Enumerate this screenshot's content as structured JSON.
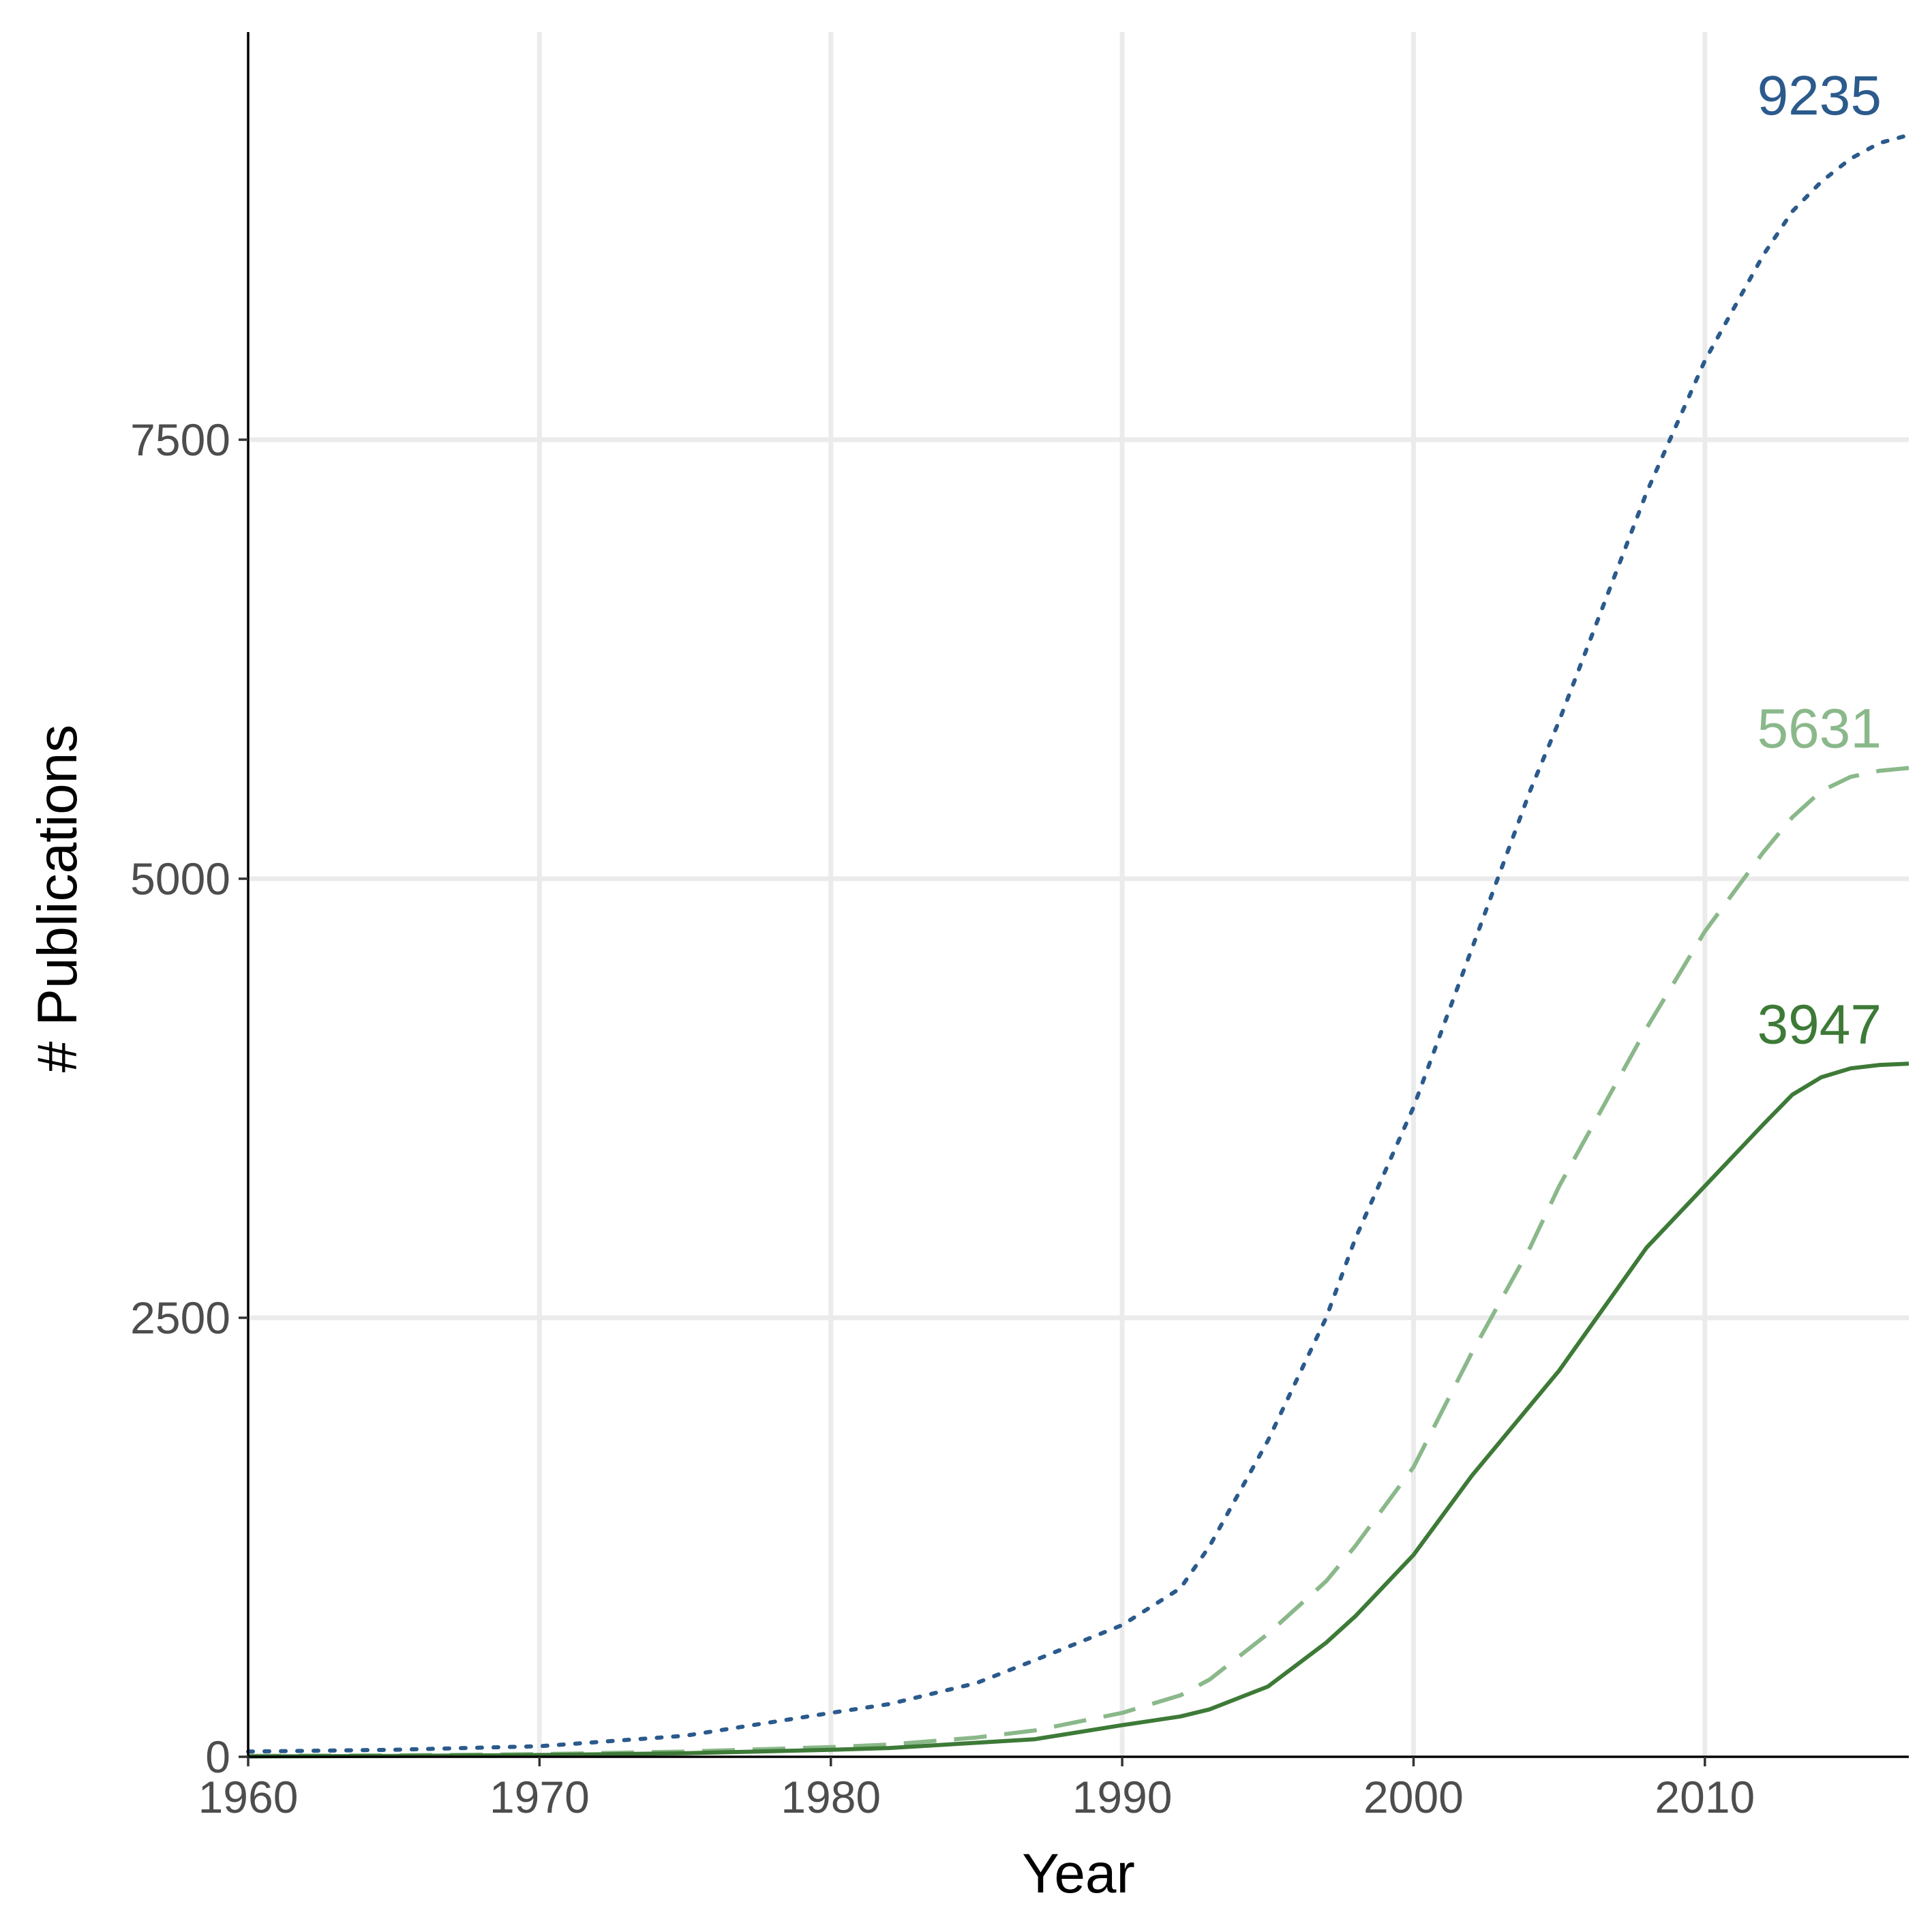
{
  "chart_data": {
    "type": "line",
    "title": "",
    "xlabel": "Year",
    "ylabel": "# Publications",
    "xlim": [
      1960,
      2017
    ],
    "ylim": [
      0,
      9235
    ],
    "x_ticks": [
      1960,
      1970,
      1980,
      1990,
      2000,
      2010
    ],
    "y_ticks": [
      0,
      2500,
      5000,
      7500
    ],
    "grid": true,
    "legend": "none",
    "x": [
      1960,
      1965,
      1970,
      1975,
      1980,
      1982,
      1985,
      1987,
      1990,
      1992,
      1993,
      1995,
      1997,
      1998,
      2000,
      2002,
      2004,
      2005,
      2008,
      2010,
      2012,
      2013,
      2014,
      2015,
      2016,
      2017
    ],
    "series": [
      {
        "color": "#2b5a8c",
        "line_style": "dotted",
        "end_label": "9235",
        "values": [
          30,
          40,
          60,
          120,
          250,
          300,
          420,
          550,
          750,
          960,
          1200,
          1800,
          2500,
          2950,
          3700,
          4600,
          5500,
          5900,
          7200,
          7950,
          8550,
          8800,
          8970,
          9100,
          9190,
          9235
        ]
      },
      {
        "color": "#8ab88a",
        "line_style": "dashed",
        "end_label": "5631",
        "values": [
          5,
          8,
          15,
          30,
          55,
          70,
          110,
          150,
          250,
          350,
          440,
          700,
          1000,
          1200,
          1650,
          2300,
          2900,
          3250,
          4150,
          4700,
          5150,
          5350,
          5500,
          5580,
          5615,
          5631
        ]
      },
      {
        "color": "#3d7a37",
        "line_style": "solid",
        "end_label": "3947",
        "values": [
          2,
          5,
          10,
          20,
          40,
          50,
          80,
          100,
          180,
          230,
          270,
          400,
          650,
          800,
          1150,
          1600,
          2000,
          2200,
          2900,
          3250,
          3600,
          3770,
          3870,
          3920,
          3940,
          3947
        ]
      }
    ]
  }
}
